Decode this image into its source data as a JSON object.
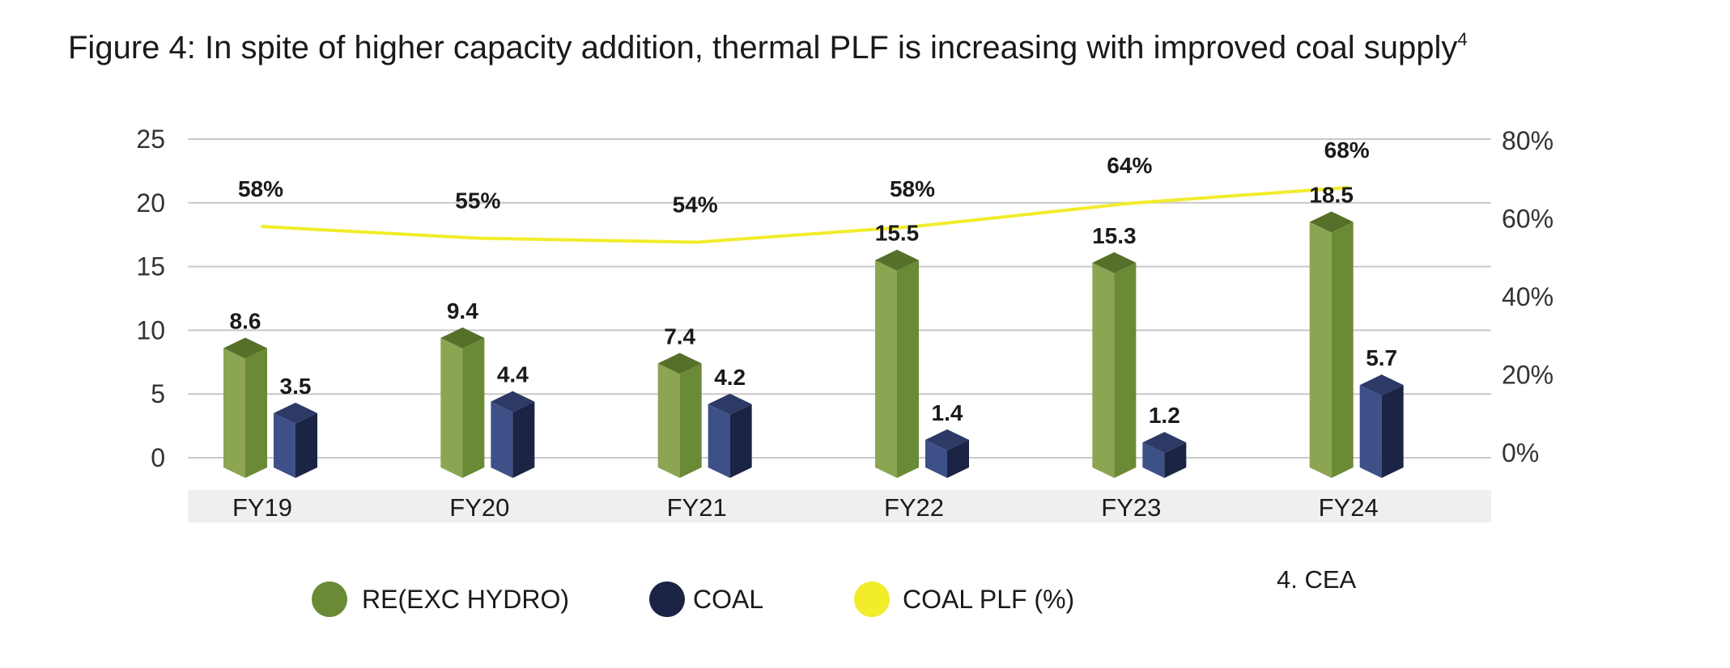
{
  "chart_data": {
    "type": "bar",
    "title": "Figure 4: In spite of higher capacity addition, thermal PLF is increasing with improved coal supply",
    "title_superscript": "4",
    "categories": [
      "FY19",
      "FY20",
      "FY21",
      "FY22",
      "FY23",
      "FY24"
    ],
    "series": [
      {
        "name": "RE(EXC HYDRO)",
        "type": "bar",
        "axis": "left",
        "color": "#6b8a35",
        "values": [
          8.6,
          9.4,
          7.4,
          15.5,
          15.3,
          18.5
        ],
        "labels": [
          "8.6",
          "9.4",
          "7.4",
          "15.5",
          "15.3",
          "18.5"
        ]
      },
      {
        "name": "COAL",
        "type": "bar",
        "axis": "left",
        "color": "#1b2444",
        "values": [
          3.5,
          4.4,
          4.2,
          1.4,
          1.2,
          5.7
        ],
        "labels": [
          "3.5",
          "4.4",
          "4.2",
          "1.4",
          "1.2",
          "5.7"
        ]
      },
      {
        "name": "COAL PLF (%)",
        "type": "line",
        "axis": "right",
        "color": "#f2ec2b",
        "values": [
          58,
          55,
          54,
          58,
          64,
          68
        ],
        "labels": [
          "58%",
          "55%",
          "54%",
          "58%",
          "64%",
          "68%"
        ]
      }
    ],
    "y_left": {
      "ylim": [
        0,
        25
      ],
      "ticks": [
        "0",
        "5",
        "10",
        "15",
        "20",
        "25"
      ]
    },
    "y_right": {
      "ylim": [
        0,
        80
      ],
      "ticks": [
        "0%",
        "20%",
        "40%",
        "60%",
        "80%"
      ]
    },
    "grid": true,
    "legend_position": "bottom",
    "source_note": "4. CEA",
    "colors": {
      "re_front": "#6b8a35",
      "re_side": "#8ca552",
      "re_top": "#56702a",
      "coal_front": "#3e5088",
      "coal_side": "#1b2444",
      "coal_top": "#2d3a66",
      "plf_line": "#f2ec2b",
      "grid": "#c8c8c8",
      "category_band": "#eeeff0"
    }
  }
}
